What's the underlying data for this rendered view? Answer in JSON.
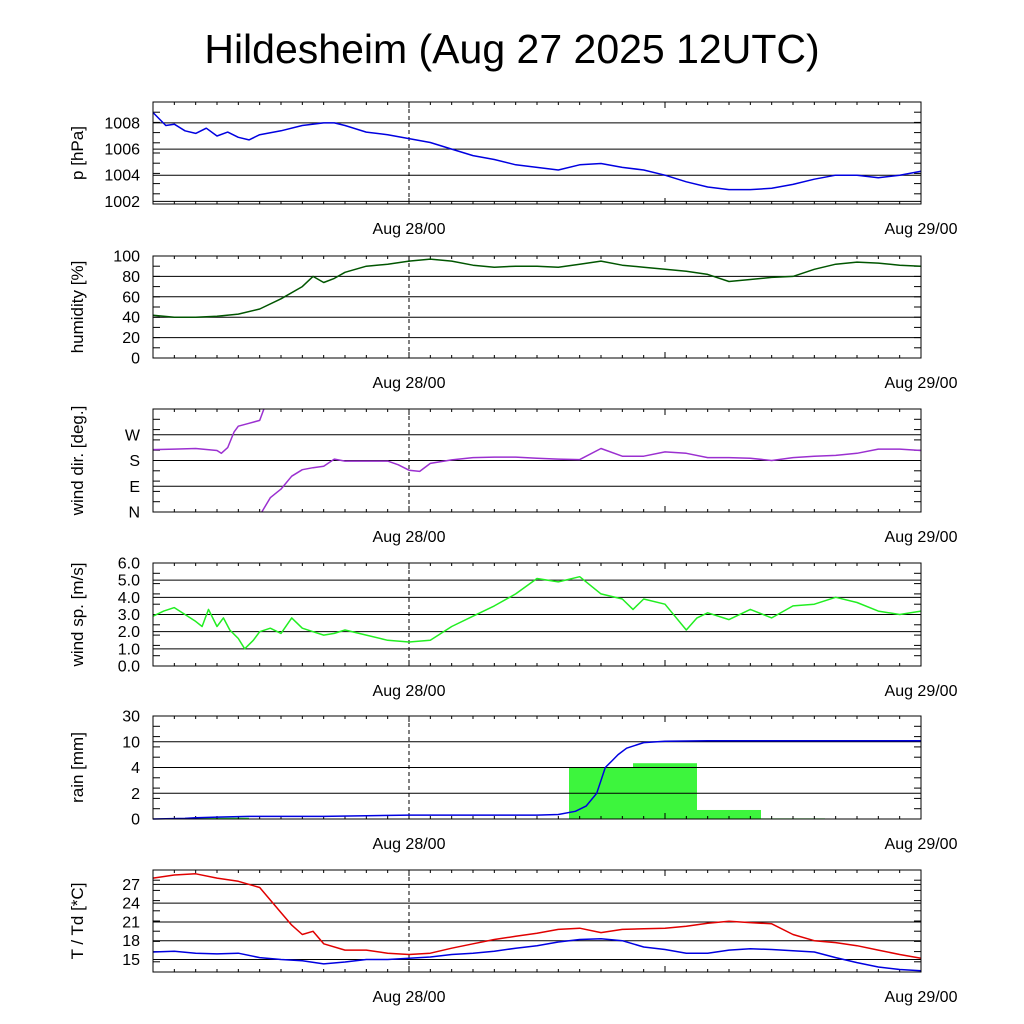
{
  "title": "Hildesheim (Aug 27 2025 12UTC)",
  "colors": {
    "pressure": "#0000e0",
    "humidity": "#005500",
    "wind_dir": "#9b30d0",
    "wind_speed": "#22ee22",
    "rain_bars": "#3df53d",
    "rain_cum": "#0000e0",
    "temperature": "#e00000",
    "dewpoint": "#0000e0"
  },
  "chart_data": [
    {
      "type": "line",
      "id": "pressure",
      "ylabel": "p [hPa]",
      "x_range": [
        0,
        36
      ],
      "x_ticks": [
        {
          "x": 12,
          "label": "Aug 28/00"
        },
        {
          "x": 36,
          "label": "Aug 29/00"
        }
      ],
      "ylim": [
        1001.8,
        1009.6
      ],
      "y_ticks": [
        {
          "v": 1002,
          "label": "1002"
        },
        {
          "v": 1004,
          "label": "1004"
        },
        {
          "v": 1006,
          "label": "1006"
        },
        {
          "v": 1008,
          "label": "1008"
        }
      ],
      "series": [
        {
          "color_key": "pressure",
          "x": [
            0,
            0.3,
            0.6,
            1,
            1.5,
            2,
            2.5,
            3,
            3.5,
            4,
            4.5,
            5,
            6,
            7,
            8,
            8.5,
            9,
            10,
            11,
            12,
            13,
            14,
            15,
            16,
            17,
            18,
            19,
            20,
            21,
            22,
            23,
            24,
            25,
            26,
            27,
            28,
            29,
            30,
            31,
            32,
            33,
            34,
            35,
            36
          ],
          "y": [
            1008.8,
            1008.3,
            1007.8,
            1007.9,
            1007.4,
            1007.2,
            1007.6,
            1007.0,
            1007.3,
            1006.9,
            1006.7,
            1007.1,
            1007.4,
            1007.8,
            1008.0,
            1008.0,
            1007.8,
            1007.3,
            1007.1,
            1006.8,
            1006.5,
            1006.0,
            1005.5,
            1005.2,
            1004.8,
            1004.6,
            1004.4,
            1004.8,
            1004.9,
            1004.6,
            1004.4,
            1004.0,
            1003.5,
            1003.1,
            1002.9,
            1002.9,
            1003.0,
            1003.3,
            1003.7,
            1004.0,
            1004.0,
            1003.8,
            1004.0,
            1004.3
          ]
        }
      ]
    },
    {
      "type": "line",
      "id": "humidity",
      "ylabel": "humidity [%]",
      "x_range": [
        0,
        36
      ],
      "x_ticks": [
        {
          "x": 12,
          "label": "Aug 28/00"
        },
        {
          "x": 36,
          "label": "Aug 29/00"
        }
      ],
      "ylim": [
        0,
        100
      ],
      "y_ticks": [
        {
          "v": 0,
          "label": "0"
        },
        {
          "v": 20,
          "label": "20"
        },
        {
          "v": 40,
          "label": "40"
        },
        {
          "v": 60,
          "label": "60"
        },
        {
          "v": 80,
          "label": "80"
        },
        {
          "v": 100,
          "label": "100"
        }
      ],
      "series": [
        {
          "color_key": "humidity",
          "x": [
            0,
            1,
            2,
            3,
            4,
            5,
            6,
            7,
            7.5,
            8,
            8.5,
            9,
            10,
            11,
            12,
            13,
            14,
            15,
            16,
            17,
            18,
            19,
            20,
            21,
            22,
            23,
            24,
            25,
            26,
            27,
            28,
            29,
            30,
            31,
            32,
            33,
            34,
            35,
            36
          ],
          "y": [
            42,
            40,
            40,
            41,
            43,
            48,
            58,
            70,
            80,
            74,
            78,
            84,
            90,
            92,
            95,
            97,
            95,
            91,
            89,
            90,
            90,
            89,
            92,
            95,
            91,
            89,
            87,
            85,
            82,
            75,
            77,
            79,
            80,
            87,
            92,
            94,
            93,
            91,
            90
          ]
        }
      ]
    },
    {
      "type": "line",
      "id": "wind_dir",
      "ylabel": "wind dir. [deg.]",
      "x_range": [
        0,
        36
      ],
      "x_ticks": [
        {
          "x": 12,
          "label": "Aug 28/00"
        },
        {
          "x": 36,
          "label": "Aug 29/00"
        }
      ],
      "ylim": [
        0,
        360
      ],
      "y_ticks": [
        {
          "v": 0,
          "label": "N"
        },
        {
          "v": 90,
          "label": "E"
        },
        {
          "v": 180,
          "label": "S"
        },
        {
          "v": 270,
          "label": "W"
        }
      ],
      "series": [
        {
          "color_key": "wind_dir",
          "x": [
            0,
            1,
            2,
            3,
            3.2,
            3.5,
            3.8,
            4,
            4.5,
            5,
            5.2
          ],
          "y": [
            218,
            220,
            222,
            215,
            205,
            225,
            280,
            300,
            310,
            320,
            360
          ]
        },
        {
          "color_key": "wind_dir",
          "x": [
            5.1,
            5.5,
            6,
            6.5,
            7,
            7.5,
            8,
            8.5,
            9,
            10,
            11,
            11.5,
            12,
            12.5,
            13,
            14,
            15,
            16,
            17,
            18,
            19,
            20,
            21,
            22,
            23,
            24,
            25,
            26,
            27,
            28,
            29,
            30,
            31,
            32,
            33,
            34,
            35,
            36
          ],
          "y": [
            0,
            50,
            80,
            125,
            148,
            155,
            160,
            185,
            178,
            178,
            178,
            165,
            146,
            142,
            170,
            182,
            190,
            192,
            192,
            188,
            185,
            183,
            222,
            195,
            195,
            210,
            205,
            190,
            190,
            188,
            180,
            190,
            195,
            198,
            205,
            220,
            220,
            215
          ]
        }
      ]
    },
    {
      "type": "line",
      "id": "wind_speed",
      "ylabel": "wind sp. [m/s]",
      "x_range": [
        0,
        36
      ],
      "x_ticks": [
        {
          "x": 12,
          "label": "Aug 28/00"
        },
        {
          "x": 36,
          "label": "Aug 29/00"
        }
      ],
      "ylim": [
        0,
        6
      ],
      "y_ticks": [
        {
          "v": 0,
          "label": "0.0"
        },
        {
          "v": 1,
          "label": "1.0"
        },
        {
          "v": 2,
          "label": "2.0"
        },
        {
          "v": 3,
          "label": "3.0"
        },
        {
          "v": 4,
          "label": "4.0"
        },
        {
          "v": 5,
          "label": "5.0"
        },
        {
          "v": 6,
          "label": "6.0"
        }
      ],
      "series": [
        {
          "color_key": "wind_speed",
          "x": [
            0,
            0.5,
            1,
            1.5,
            2,
            2.3,
            2.6,
            3,
            3.3,
            3.6,
            4,
            4.3,
            4.7,
            5,
            5.5,
            6,
            6.5,
            7,
            7.5,
            8,
            8.5,
            9,
            10,
            11,
            12,
            13,
            14,
            15,
            16,
            17,
            18,
            19,
            20,
            21,
            22,
            22.5,
            23,
            24,
            25,
            25.5,
            26,
            27,
            28,
            29,
            30,
            31,
            32,
            33,
            34,
            35,
            36
          ],
          "y": [
            2.9,
            3.2,
            3.4,
            3.0,
            2.6,
            2.3,
            3.3,
            2.3,
            2.8,
            2.1,
            1.6,
            1.0,
            1.5,
            2.0,
            2.2,
            1.9,
            2.8,
            2.2,
            2.0,
            1.8,
            1.9,
            2.1,
            1.8,
            1.5,
            1.4,
            1.5,
            2.3,
            2.9,
            3.5,
            4.2,
            5.1,
            4.9,
            5.2,
            4.2,
            3.9,
            3.3,
            3.9,
            3.6,
            2.1,
            2.8,
            3.1,
            2.7,
            3.3,
            2.8,
            3.5,
            3.6,
            4.0,
            3.7,
            3.2,
            3.0,
            3.2
          ]
        }
      ]
    },
    {
      "type": "bar+line",
      "id": "rain",
      "ylabel": "rain [mm]",
      "x_range": [
        0,
        36
      ],
      "x_ticks": [
        {
          "x": 12,
          "label": "Aug 28/00"
        },
        {
          "x": 36,
          "label": "Aug 29/00"
        }
      ],
      "y_levels": [
        0,
        2,
        4,
        10,
        30
      ],
      "y_ticks": [
        {
          "v": 0,
          "label": "0"
        },
        {
          "v": 2,
          "label": "2"
        },
        {
          "v": 4,
          "label": "4"
        },
        {
          "v": 10,
          "label": "10"
        },
        {
          "v": 30,
          "label": "30"
        }
      ],
      "bars": [
        {
          "x0": 1.5,
          "x1": 4.5,
          "value": 0.1
        },
        {
          "x0": 19.5,
          "x1": 22.5,
          "value": 4.0
        },
        {
          "x0": 22.5,
          "x1": 25.5,
          "value": 5.0
        },
        {
          "x0": 25.5,
          "x1": 28.5,
          "value": 0.7
        },
        {
          "x0": 28.5,
          "x1": 31.5,
          "value": 0.05
        }
      ],
      "series": [
        {
          "color_key": "rain_cum",
          "x": [
            0,
            1.5,
            2,
            3,
            4.5,
            8,
            10,
            12,
            15,
            18,
            19,
            19.8,
            20.3,
            20.8,
            21.2,
            21.5,
            21.8,
            22.2,
            23,
            24,
            26,
            28,
            30,
            32,
            34,
            36
          ],
          "y": [
            0,
            0.05,
            0.1,
            0.15,
            0.2,
            0.2,
            0.25,
            0.3,
            0.3,
            0.3,
            0.35,
            0.6,
            1.0,
            2.0,
            4.0,
            5.5,
            7.0,
            8.5,
            9.8,
            10.4,
            10.7,
            10.8,
            10.8,
            10.8,
            10.8,
            10.8
          ]
        }
      ]
    },
    {
      "type": "line",
      "id": "temperature",
      "ylabel": "T / Td [*C]",
      "x_range": [
        0,
        36
      ],
      "x_ticks": [
        {
          "x": 12,
          "label": "Aug 28/00"
        },
        {
          "x": 36,
          "label": "Aug 29/00"
        }
      ],
      "ylim": [
        13,
        29.3
      ],
      "y_ticks": [
        {
          "v": 15,
          "label": "15"
        },
        {
          "v": 18,
          "label": "18"
        },
        {
          "v": 21,
          "label": "21"
        },
        {
          "v": 24,
          "label": "24"
        },
        {
          "v": 27,
          "label": "27"
        }
      ],
      "series": [
        {
          "color_key": "temperature",
          "x": [
            0,
            1,
            2,
            3,
            4,
            5,
            5.5,
            6,
            6.5,
            7,
            7.5,
            8,
            9,
            10,
            11,
            12,
            13,
            14,
            15,
            16,
            17,
            18,
            19,
            20,
            21,
            22,
            23,
            24,
            25,
            26,
            27,
            28,
            29,
            30,
            31,
            32,
            33,
            34,
            35,
            36
          ],
          "y": [
            28.0,
            28.5,
            28.7,
            28.0,
            27.5,
            26.5,
            24.5,
            22.5,
            20.5,
            19.0,
            19.5,
            17.5,
            16.5,
            16.5,
            16.0,
            15.8,
            16.0,
            16.8,
            17.5,
            18.2,
            18.7,
            19.2,
            19.8,
            20.0,
            19.3,
            19.8,
            19.9,
            20.0,
            20.3,
            20.8,
            21.1,
            20.9,
            20.7,
            19.0,
            18.0,
            17.7,
            17.2,
            16.5,
            15.8,
            15.2
          ]
        },
        {
          "color_key": "dewpoint",
          "x": [
            0,
            1,
            2,
            3,
            4,
            5,
            6,
            7,
            8,
            9,
            10,
            11,
            12,
            13,
            14,
            15,
            16,
            17,
            18,
            19,
            20,
            21,
            22,
            23,
            24,
            25,
            26,
            27,
            28,
            29,
            30,
            31,
            32,
            33,
            34,
            35,
            36
          ],
          "y": [
            16.2,
            16.3,
            16.0,
            15.9,
            16.0,
            15.3,
            15.0,
            14.8,
            14.3,
            14.6,
            15.0,
            15.0,
            15.2,
            15.4,
            15.8,
            16.0,
            16.3,
            16.8,
            17.2,
            17.8,
            18.2,
            18.3,
            18.0,
            17.0,
            16.6,
            16.0,
            16.0,
            16.5,
            16.7,
            16.6,
            16.4,
            16.2,
            15.3,
            14.5,
            13.8,
            13.4,
            13.2
          ]
        }
      ]
    }
  ]
}
